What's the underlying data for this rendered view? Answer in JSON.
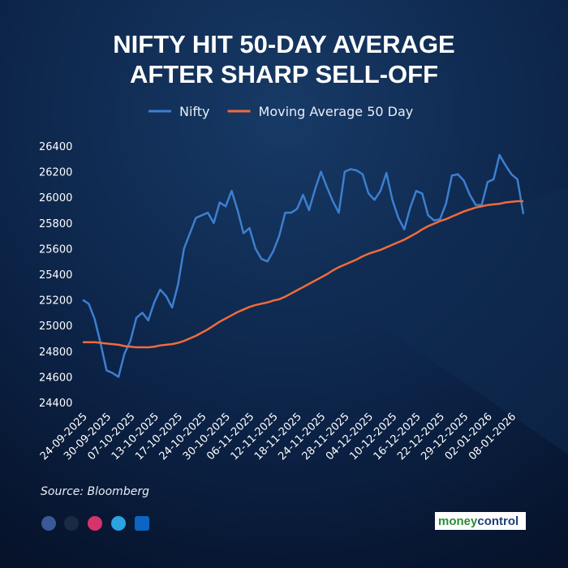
{
  "chart_data": {
    "type": "line",
    "title": [
      "NIFTY HIT 50-DAY AVERAGE",
      "AFTER SHARP SELL-OFF"
    ],
    "source": "Source: Bloomberg",
    "brand": [
      "money",
      "control"
    ],
    "categories": [
      "24-09-2025",
      null,
      null,
      null,
      "30-09-2025",
      null,
      null,
      null,
      "07-10-2025",
      null,
      null,
      null,
      "13-10-2025",
      null,
      null,
      null,
      "17-10-2025",
      null,
      null,
      null,
      "24-10-2025",
      null,
      null,
      null,
      "30-10-2025",
      null,
      null,
      null,
      "06-11-2025",
      null,
      null,
      null,
      "12-11-2025",
      null,
      null,
      null,
      "18-11-2025",
      null,
      null,
      null,
      "24-11-2025",
      null,
      null,
      null,
      "28-11-2025",
      null,
      null,
      null,
      "04-12-2025",
      null,
      null,
      null,
      "10-12-2025",
      null,
      null,
      null,
      "16-12-2025",
      null,
      null,
      null,
      "22-12-2025",
      null,
      null,
      null,
      "29-12-2025",
      null,
      null,
      null,
      "02-01-2026",
      null,
      null,
      null,
      "08-01-2026",
      null,
      null
    ],
    "series": [
      {
        "name": "Nifty",
        "color": "#3d7fcf",
        "values": [
          25200,
          25170,
          25050,
          24860,
          24650,
          24630,
          24600,
          24780,
          24880,
          25060,
          25100,
          25040,
          25180,
          25280,
          25230,
          25140,
          25320,
          25600,
          25720,
          25840,
          25860,
          25880,
          25800,
          25960,
          25930,
          26050,
          25900,
          25720,
          25760,
          25600,
          25520,
          25500,
          25580,
          25700,
          25880,
          25880,
          25910,
          26020,
          25900,
          26060,
          26200,
          26080,
          25970,
          25880,
          26200,
          26220,
          26210,
          26180,
          26030,
          25980,
          26050,
          26190,
          25980,
          25840,
          25750,
          25920,
          26050,
          26030,
          25860,
          25820,
          25830,
          25950,
          26170,
          26180,
          26130,
          26020,
          25940,
          25940,
          26120,
          26140,
          26330,
          26250,
          26180,
          26140,
          25870
        ]
      },
      {
        "name": "Moving Average 50 Day",
        "color": "#f26b3a",
        "values": [
          24870,
          24870,
          24870,
          24865,
          24860,
          24855,
          24850,
          24840,
          24835,
          24830,
          24830,
          24830,
          24835,
          24845,
          24850,
          24855,
          24865,
          24880,
          24900,
          24920,
          24945,
          24970,
          25000,
          25030,
          25055,
          25080,
          25105,
          25125,
          25145,
          25160,
          25170,
          25180,
          25195,
          25205,
          25225,
          25250,
          25275,
          25300,
          25325,
          25350,
          25375,
          25400,
          25430,
          25455,
          25475,
          25495,
          25515,
          25540,
          25560,
          25575,
          25590,
          25610,
          25630,
          25650,
          25670,
          25695,
          25720,
          25750,
          25775,
          25795,
          25815,
          25830,
          25850,
          25870,
          25890,
          25905,
          25920,
          25930,
          25940,
          25945,
          25950,
          25960,
          25965,
          25970,
          25970
        ]
      }
    ],
    "ylim": [
      24400,
      26400
    ],
    "yticks": [
      24400,
      24600,
      24800,
      25000,
      25200,
      25400,
      25600,
      25800,
      26000,
      26200,
      26400
    ],
    "legend": "top"
  }
}
